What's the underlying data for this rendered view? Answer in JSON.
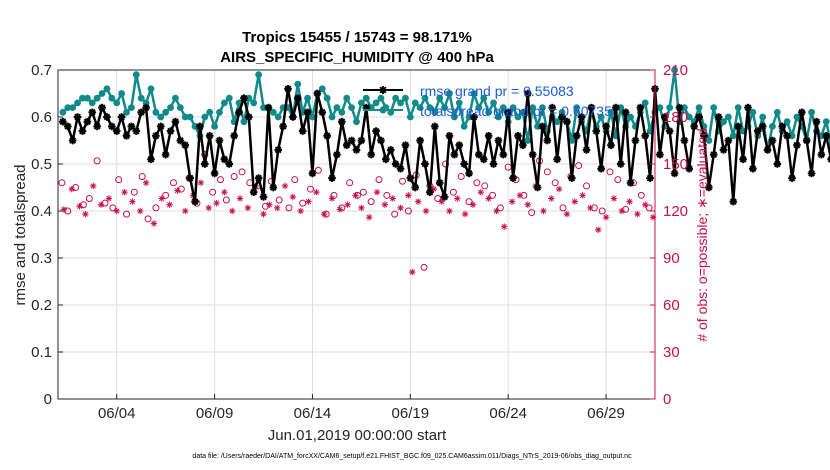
{
  "chart_data": {
    "type": "line",
    "title": "Tropics 15455 / 15743 = 98.171%",
    "subtitle": "AIRS_SPECIFIC_HUMIDITY @ 400 hPa",
    "xlabel": "Jun.01,2019 00:00:00 start",
    "ylabel": "rmse and totalspread",
    "ylabel_right": "# of obs: o=possible; ∗=evaluated",
    "footnote": "data file: /Users/raeder/DAI/ATM_forcXX/CAM6_setup/f.e21.FHIST_BGC.f09_025.CAM6assim.011/Diags_NTrS_2019-06/obs_diag_output.nc",
    "xlim": [
      1,
      31.5
    ],
    "ylim": [
      0,
      0.7
    ],
    "ylim_right": [
      0,
      210
    ],
    "xticks": [
      4,
      9,
      14,
      19,
      24,
      29
    ],
    "xtick_labels": [
      "06/04",
      "06/09",
      "06/14",
      "06/19",
      "06/24",
      "06/29"
    ],
    "yticks": [
      0,
      0.1,
      0.2,
      0.3,
      0.4,
      0.5,
      0.6,
      0.7
    ],
    "ytick_labels": [
      "0",
      "0.1",
      "0.2",
      "0.3",
      "0.4",
      "0.5",
      "0.6",
      "0.7"
    ],
    "yticks_right": [
      0,
      30,
      60,
      90,
      120,
      150,
      180,
      210
    ],
    "ytick_labels_right": [
      "0",
      "30",
      "60",
      "90",
      "120",
      "150",
      "180",
      "210"
    ],
    "grid": true,
    "legend_position": "top-right",
    "colors": {
      "rmse": "#000000",
      "spread": "#108a8a",
      "counts": "#c8104f",
      "legend_text": "#1a5cd6"
    },
    "series": [
      {
        "name": "rmse grand pr = 0.55083",
        "axis": "left",
        "style": "line-asterisk",
        "x_start": 1.25,
        "x_step": 0.25,
        "values": [
          0.59,
          0.58,
          0.55,
          0.6,
          0.57,
          0.59,
          0.61,
          0.58,
          0.62,
          0.6,
          0.58,
          0.57,
          0.6,
          0.56,
          0.58,
          0.57,
          0.61,
          0.62,
          0.51,
          0.56,
          0.58,
          0.52,
          0.57,
          0.59,
          0.55,
          0.54,
          0.47,
          0.42,
          0.58,
          0.5,
          0.56,
          0.48,
          0.55,
          0.51,
          0.5,
          0.56,
          0.61,
          0.64,
          0.6,
          0.44,
          0.47,
          0.43,
          0.62,
          0.45,
          0.53,
          0.58,
          0.66,
          0.6,
          0.64,
          0.57,
          0.61,
          0.48,
          0.65,
          0.61,
          0.56,
          0.47,
          0.52,
          0.59,
          0.54,
          0.55,
          0.53,
          0.55,
          0.62,
          0.52,
          0.57,
          0.55,
          0.51,
          0.53,
          0.5,
          0.49,
          0.54,
          0.47,
          0.45,
          0.55,
          0.5,
          0.44,
          0.58,
          0.46,
          0.43,
          0.56,
          0.52,
          0.54,
          0.5,
          0.48,
          0.6,
          0.52,
          0.51,
          0.56,
          0.5,
          0.55,
          0.52,
          0.61,
          0.47,
          0.56,
          0.54,
          0.65,
          0.52,
          0.45,
          0.58,
          0.55,
          0.62,
          0.51,
          0.6,
          0.59,
          0.47,
          0.56,
          0.6,
          0.53,
          0.62,
          0.57,
          0.49,
          0.58,
          0.54,
          0.62,
          0.5,
          0.61,
          0.46,
          0.55,
          0.62,
          0.56,
          0.47,
          0.66,
          0.52,
          0.6,
          0.57,
          0.48,
          0.62,
          0.55,
          0.49,
          0.58,
          0.6,
          0.56,
          0.45,
          0.52,
          0.6,
          0.53,
          0.55,
          0.42,
          0.58,
          0.51,
          0.62,
          0.49,
          0.57,
          0.58,
          0.53,
          0.55,
          0.5,
          0.58,
          0.56,
          0.47,
          0.54,
          0.61,
          0.55,
          0.48,
          0.59,
          0.52,
          0.56,
          0.51,
          0.45,
          0.55,
          0.52,
          0.47,
          0.41,
          0.39,
          0.4
        ]
      },
      {
        "name": "totalspread grand pr = 0.60735",
        "axis": "left",
        "style": "line-dot",
        "x_start": 1.25,
        "x_step": 0.25,
        "values": [
          0.61,
          0.62,
          0.62,
          0.63,
          0.64,
          0.64,
          0.63,
          0.64,
          0.65,
          0.66,
          0.64,
          0.63,
          0.65,
          0.61,
          0.62,
          0.69,
          0.64,
          0.63,
          0.66,
          0.61,
          0.6,
          0.61,
          0.62,
          0.64,
          0.62,
          0.6,
          0.6,
          0.58,
          0.56,
          0.6,
          0.61,
          0.58,
          0.61,
          0.63,
          0.64,
          0.59,
          0.63,
          0.59,
          0.64,
          0.63,
          0.69,
          0.62,
          0.62,
          0.61,
          0.6,
          0.62,
          0.62,
          0.6,
          0.67,
          0.61,
          0.64,
          0.6,
          0.65,
          0.66,
          0.64,
          0.6,
          0.62,
          0.61,
          0.64,
          0.62,
          0.59,
          0.63,
          0.64,
          0.62,
          0.63,
          0.64,
          0.62,
          0.61,
          0.64,
          0.63,
          0.64,
          0.6,
          0.63,
          0.62,
          0.64,
          0.62,
          0.61,
          0.64,
          0.62,
          0.65,
          0.6,
          0.63,
          0.58,
          0.6,
          0.65,
          0.62,
          0.64,
          0.61,
          0.63,
          0.6,
          0.62,
          0.59,
          0.62,
          0.6,
          0.61,
          0.55,
          0.62,
          0.58,
          0.62,
          0.57,
          0.6,
          0.59,
          0.61,
          0.59,
          0.55,
          0.62,
          0.59,
          0.57,
          0.62,
          0.58,
          0.6,
          0.57,
          0.61,
          0.56,
          0.62,
          0.58,
          0.6,
          0.58,
          0.61,
          0.63,
          0.57,
          0.61,
          0.62,
          0.58,
          0.62,
          0.7,
          0.59,
          0.62,
          0.6,
          0.59,
          0.62,
          0.58,
          0.55,
          0.62,
          0.57,
          0.59,
          0.6,
          0.56,
          0.62,
          0.57,
          0.58,
          0.61,
          0.56,
          0.6,
          0.53,
          0.58,
          0.61,
          0.57,
          0.59,
          0.56,
          0.6,
          0.58,
          0.55,
          0.61,
          0.57,
          0.56,
          0.59,
          0.54,
          0.6,
          0.57,
          0.57,
          0.55,
          0.54,
          0.54
        ]
      },
      {
        "name": "obs possible",
        "axis": "right",
        "style": "circle",
        "x": [
          1.2,
          1.5,
          1.9,
          2.3,
          2.6,
          3.0,
          3.4,
          3.8,
          4.1,
          4.5,
          4.9,
          5.3,
          5.6,
          6.0,
          6.5,
          6.9,
          7.3,
          7.7,
          8.1,
          8.5,
          8.9,
          9.3,
          9.6,
          10.0,
          10.4,
          10.8,
          11.2,
          11.6,
          11.9,
          12.3,
          12.8,
          13.1,
          13.5,
          13.9,
          14.3,
          14.7,
          15.1,
          15.5,
          15.9,
          16.3,
          16.6,
          17.0,
          17.4,
          17.8,
          18.2,
          18.6,
          18.9,
          19.3,
          19.7,
          20.0,
          20.4,
          20.8,
          21.2,
          21.6,
          22.0,
          22.4,
          22.8,
          23.2,
          23.6,
          24.0,
          24.4,
          24.8,
          25.2,
          25.6,
          26.0,
          26.4,
          26.8,
          27.2,
          27.6,
          28.0,
          28.4,
          28.8,
          29.2,
          29.6,
          30.0,
          30.4,
          30.8,
          31.2
        ],
        "values": [
          138,
          120,
          135,
          124,
          128,
          152,
          125,
          122,
          140,
          118,
          132,
          142,
          115,
          122,
          130,
          138,
          134,
          141,
          125,
          156,
          132,
          140,
          127,
          142,
          145,
          138,
          136,
          123,
          139,
          127,
          122,
          140,
          125,
          134,
          146,
          118,
          130,
          122,
          138,
          130,
          132,
          126,
          140,
          130,
          118,
          139,
          120,
          143,
          84,
          136,
          128,
          150,
          132,
          142,
          126,
          138,
          136,
          130,
          122,
          148,
          140,
          130,
          119,
          152,
          145,
          138,
          122,
          142,
          149,
          136,
          122,
          120,
          145,
          140,
          121,
          138,
          130,
          122
        ]
      },
      {
        "name": "obs evaluated",
        "axis": "right",
        "style": "asterisk",
        "x": [
          1.3,
          1.7,
          2.1,
          2.4,
          2.8,
          3.2,
          3.6,
          4.0,
          4.4,
          4.8,
          5.2,
          5.5,
          5.9,
          6.3,
          6.7,
          7.1,
          7.5,
          7.9,
          8.3,
          8.7,
          9.1,
          9.5,
          9.9,
          10.3,
          10.7,
          11.1,
          11.5,
          11.8,
          12.2,
          12.6,
          13.0,
          13.4,
          13.8,
          14.2,
          14.6,
          15.0,
          15.4,
          15.8,
          16.2,
          16.5,
          16.9,
          17.3,
          17.7,
          18.1,
          18.5,
          18.9,
          19.1,
          19.4,
          19.8,
          20.2,
          20.6,
          21.0,
          21.4,
          21.8,
          22.2,
          22.6,
          23.0,
          23.4,
          23.8,
          24.2,
          24.6,
          25.0,
          25.4,
          25.8,
          26.2,
          26.6,
          27.0,
          27.4,
          27.8,
          28.2,
          28.6,
          29.0,
          29.4,
          29.8,
          30.2,
          30.6,
          31.0,
          31.4
        ],
        "values": [
          121,
          134,
          123,
          118,
          136,
          124,
          128,
          120,
          132,
          126,
          120,
          138,
          112,
          128,
          124,
          133,
          120,
          130,
          138,
          122,
          125,
          132,
          120,
          128,
          122,
          136,
          118,
          124,
          122,
          136,
          129,
          120,
          126,
          132,
          118,
          128,
          121,
          124,
          130,
          122,
          116,
          132,
          124,
          128,
          122,
          130,
          81,
          126,
          120,
          134,
          126,
          120,
          128,
          118,
          124,
          132,
          128,
          120,
          110,
          126,
          130,
          124,
          136,
          120,
          128,
          134,
          118,
          126,
          130,
          122,
          108,
          116,
          128,
          120,
          126,
          118,
          124,
          116
        ]
      }
    ]
  }
}
